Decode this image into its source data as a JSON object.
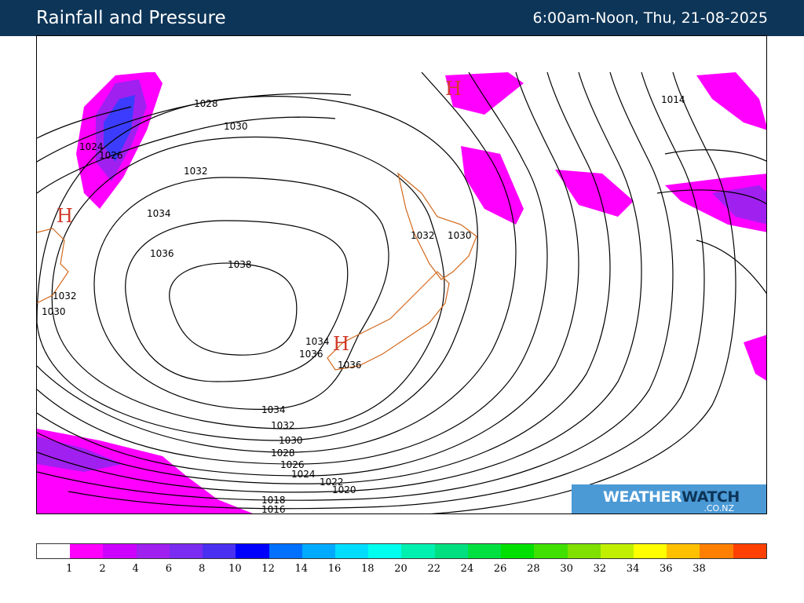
{
  "header": {
    "title": "Rainfall and Pressure",
    "period": "6:00am-Noon, Thu, 21-08-2025"
  },
  "map": {
    "pressure_labels": [
      "1014",
      "1016",
      "1018",
      "1020",
      "1022",
      "1024",
      "1026",
      "1028",
      "1030",
      "1032",
      "1034",
      "1036",
      "1038"
    ],
    "high_marker": "H",
    "colors": {
      "rain_light": "#ff00ff",
      "rain_medium": "#a020f0",
      "rain_heavy": "#3c3cff",
      "isobar": "#000000",
      "coastline": "#d2691e",
      "high_marker": "#d13a2a"
    }
  },
  "logo": {
    "weather": "WEATHER",
    "watch": "WATCH",
    "domain": ".CO.NZ"
  },
  "legend": {
    "labels": [
      "1",
      "2",
      "4",
      "6",
      "8",
      "10",
      "12",
      "14",
      "16",
      "18",
      "20",
      "22",
      "24",
      "26",
      "28",
      "30",
      "32",
      "34",
      "36",
      "38"
    ],
    "colors": [
      "#ffffff",
      "#ff00ff",
      "#cc00ff",
      "#a020f0",
      "#7a2cf0",
      "#4a30f0",
      "#0000ff",
      "#0070ff",
      "#00aaff",
      "#00ddff",
      "#00ffee",
      "#00f0b0",
      "#00e080",
      "#00e040",
      "#00e000",
      "#40e000",
      "#80e000",
      "#c0f000",
      "#ffff00",
      "#ffc000",
      "#ff8000",
      "#ff4000"
    ]
  }
}
